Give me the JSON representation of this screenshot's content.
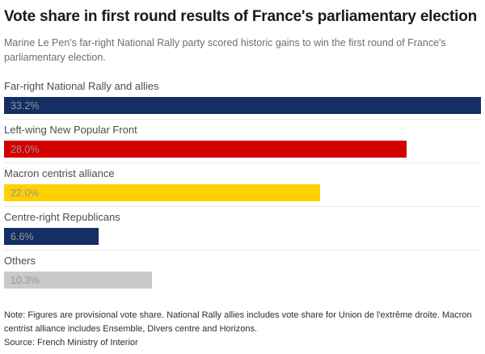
{
  "header": {
    "title": "Vote share in first round results of France's parliamentary election",
    "subtitle": "Marine Le Pen's far-right National Rally party scored historic gains to win the first round of France's parliamentary election."
  },
  "chart_data": {
    "type": "bar",
    "orientation": "horizontal",
    "categories": [
      "Far-right National Rally and allies",
      "Left-wing New Popular Front",
      "Macron centrist alliance",
      "Centre-right Republicans",
      "Others"
    ],
    "values": [
      33.2,
      28.0,
      22.0,
      6.6,
      10.3
    ],
    "value_labels": [
      "33.2%",
      "28.0%",
      "22.0%",
      "6.6%",
      "10.3%"
    ],
    "colors": [
      "#132f63",
      "#d40000",
      "#ffd100",
      "#132f63",
      "#c9c9c9"
    ],
    "xmax": 33.2,
    "value_label_color": "#979797",
    "grid": false,
    "legend": false
  },
  "footer": {
    "note": "Note: Figures are provisional vote share. National Rally allies includes vote share for Union de l'extrême droite. Macron centrist alliance includes Ensemble, Divers centre and Horizons.",
    "source": "Source: French Ministry of Interior"
  }
}
